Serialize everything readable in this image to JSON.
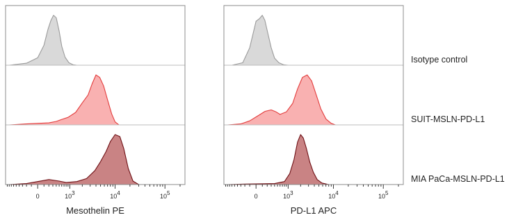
{
  "chart_data": [
    {
      "type": "area",
      "panel": "left",
      "xlabel": "Mesothelin PE",
      "x_scale": "biexponential",
      "x_ticks": [
        {
          "base": "0",
          "exp": ""
        },
        {
          "base": "10",
          "exp": "3"
        },
        {
          "base": "10",
          "exp": "4"
        },
        {
          "base": "10",
          "exp": "5"
        }
      ],
      "series": [
        {
          "name": "Isotype control",
          "fill": "#d9d9d9",
          "stroke": "#9a9a9a",
          "x": [
            -800,
            -200,
            0,
            100,
            180,
            250,
            320,
            400,
            500,
            600,
            750,
            950,
            1200,
            1500
          ],
          "y": [
            0,
            0.04,
            0.15,
            0.4,
            0.72,
            0.9,
            1.0,
            0.95,
            0.68,
            0.38,
            0.16,
            0.05,
            0.01,
            0
          ]
        },
        {
          "name": "SUIT-MSLN-PD-L1",
          "fill": "#f9b1b1",
          "stroke": "#e23b3b",
          "x": [
            -800,
            -200,
            200,
            400,
            600,
            900,
            1400,
            2000,
            2700,
            3300,
            4000,
            4800,
            5800,
            7000,
            8500,
            10000,
            12000
          ],
          "y": [
            0,
            0.02,
            0.04,
            0.07,
            0.11,
            0.15,
            0.25,
            0.44,
            0.6,
            0.82,
            1.0,
            0.95,
            0.78,
            0.5,
            0.22,
            0.06,
            0
          ]
        },
        {
          "name": "MIA PaCa-MSLN-PD-L1",
          "fill": "#c98384",
          "stroke": "#6e0f14",
          "x": [
            -800,
            -200,
            0,
            200,
            500,
            800,
            1500,
            2500,
            3800,
            5000,
            6500,
            8000,
            10000,
            12500,
            15000,
            18500,
            23000,
            30000
          ],
          "y": [
            0,
            0.02,
            0.06,
            0.1,
            0.07,
            0.04,
            0.06,
            0.12,
            0.28,
            0.46,
            0.66,
            0.86,
            1.0,
            0.96,
            0.72,
            0.32,
            0.07,
            0
          ]
        }
      ]
    },
    {
      "type": "area",
      "panel": "right",
      "xlabel": "PD-L1 APC",
      "x_scale": "biexponential",
      "x_ticks": [
        {
          "base": "0",
          "exp": ""
        },
        {
          "base": "10",
          "exp": "3"
        },
        {
          "base": "10",
          "exp": "4"
        },
        {
          "base": "10",
          "exp": "5"
        }
      ],
      "series": [
        {
          "name": "Isotype control",
          "fill": "#d9d9d9",
          "stroke": "#9a9a9a",
          "x": [
            -600,
            -250,
            -100,
            0,
            50,
            100,
            150,
            220,
            300,
            400,
            550,
            750,
            1000
          ],
          "y": [
            0,
            0.05,
            0.35,
            0.88,
            0.93,
            1.0,
            0.9,
            0.62,
            0.35,
            0.14,
            0.05,
            0.01,
            0
          ]
        },
        {
          "name": "SUIT-MSLN-PD-L1",
          "fill": "#f9b1b1",
          "stroke": "#e23b3b",
          "x": [
            -800,
            -300,
            -100,
            50,
            150,
            300,
            450,
            600,
            900,
            1300,
            1700,
            2200,
            2800,
            3500,
            4400,
            5500,
            7000,
            9000,
            11000
          ],
          "y": [
            0,
            0.02,
            0.08,
            0.2,
            0.27,
            0.3,
            0.26,
            0.21,
            0.26,
            0.43,
            0.72,
            0.95,
            1.0,
            0.88,
            0.6,
            0.32,
            0.12,
            0.03,
            0
          ]
        },
        {
          "name": "MIA PaCa-MSLN-PD-L1",
          "fill": "#c98384",
          "stroke": "#6e0f14",
          "x": [
            -800,
            -200,
            400,
            800,
            1100,
            1400,
            1700,
            2000,
            2300,
            2700,
            3200,
            3800,
            4600,
            5800,
            8000
          ],
          "y": [
            0,
            0.01,
            0.02,
            0.06,
            0.22,
            0.5,
            0.85,
            1.0,
            0.93,
            0.72,
            0.45,
            0.25,
            0.1,
            0.03,
            0
          ]
        }
      ]
    }
  ]
}
